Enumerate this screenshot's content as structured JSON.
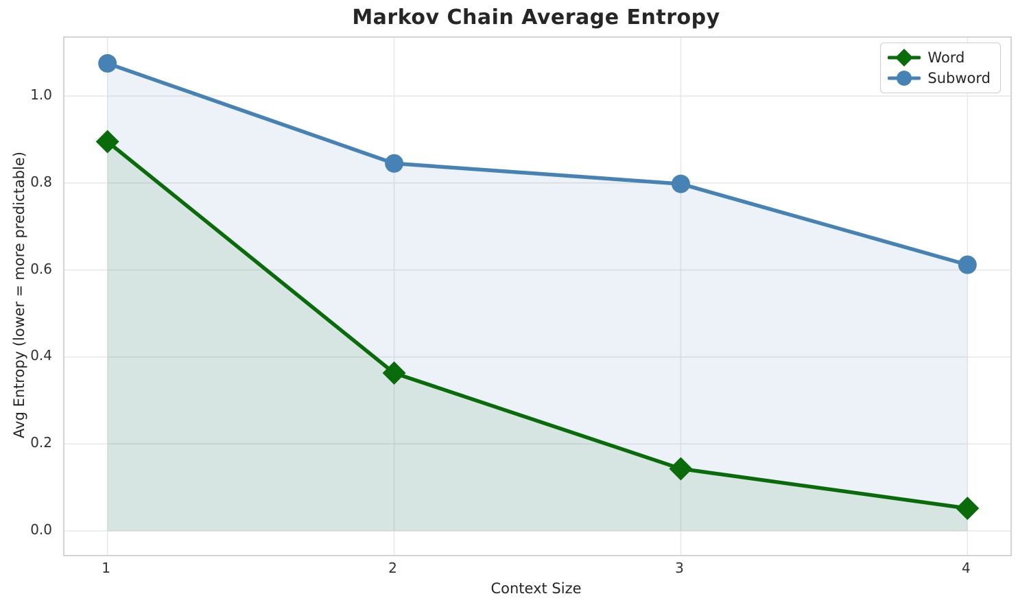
{
  "chart_data": {
    "type": "line",
    "title": "Markov Chain Average Entropy",
    "xlabel": "Context Size",
    "ylabel": "Avg Entropy (lower = more predictable)",
    "x": [
      1,
      2,
      3,
      4
    ],
    "series": [
      {
        "name": "Word",
        "color": "#0a6b0a",
        "marker": "diamond",
        "values": [
          0.895,
          0.363,
          0.143,
          0.052
        ],
        "fill_color": "rgba(0,100,0,0.09)"
      },
      {
        "name": "Subword",
        "color": "#4682b4",
        "marker": "circle",
        "values": [
          1.075,
          0.845,
          0.798,
          0.612
        ],
        "fill_color": "rgba(70,130,180,0.10)"
      }
    ],
    "x_ticks": [
      1,
      2,
      3,
      4
    ],
    "x_tick_labels": [
      "1",
      "2",
      "3",
      "4"
    ],
    "y_ticks": [
      0.0,
      0.2,
      0.4,
      0.6,
      0.8,
      1.0
    ],
    "y_tick_labels": [
      "0.0",
      "0.2",
      "0.4",
      "0.6",
      "0.8",
      "1.0"
    ],
    "xlim": [
      0.85,
      4.15
    ],
    "ylim": [
      -0.055,
      1.134
    ],
    "grid": true,
    "grid_color": "#e7e7e7",
    "legend_position": "upper right",
    "fill_baseline": 0
  }
}
